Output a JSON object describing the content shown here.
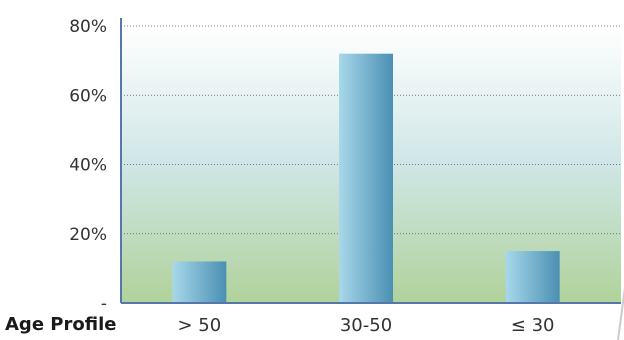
{
  "chart_data": {
    "type": "bar",
    "title": "",
    "xlabel": "Age Profile",
    "ylabel": "",
    "categories": [
      "> 50",
      "30-50",
      "≤ 30"
    ],
    "values": [
      12,
      72,
      15
    ],
    "ylim": [
      0,
      80
    ],
    "yticks": [
      0,
      20,
      40,
      60,
      80
    ],
    "ytick_labels": [
      "-",
      "20%",
      "40%",
      "60%",
      "80%"
    ],
    "grid": true,
    "legend": "none",
    "colors": {
      "bar_light": "#a8d8ea",
      "bar_dark": "#4a8fb3",
      "plot_top": "#ffffff",
      "plot_mid": "#cfe6e6",
      "plot_bottom": "#b0d29a",
      "axis": "#5577aa"
    }
  }
}
